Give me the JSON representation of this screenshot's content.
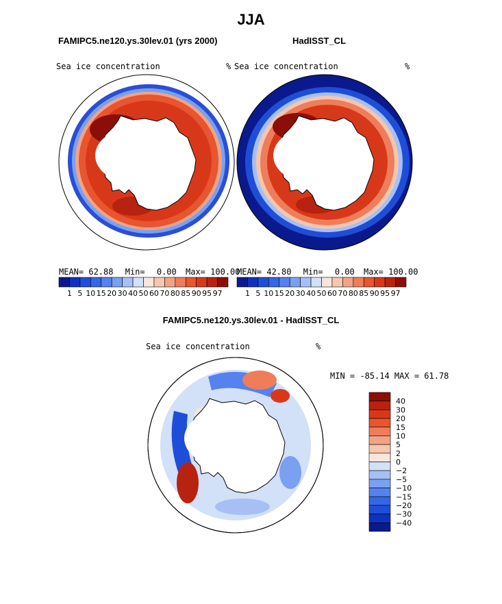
{
  "season": "JJA",
  "panels": {
    "left": {
      "title": "FAMIPC5.ne120.ys.30lev.01 (yrs 2000)",
      "variable": "Sea ice concentration",
      "units": "%",
      "stats": {
        "mean_label": "MEAN=",
        "mean": "62.88",
        "min_label": "Min=",
        "min": "0.00",
        "max_label": "Max=",
        "max": "100.00"
      }
    },
    "right": {
      "title": "HadISST_CL",
      "variable": "Sea ice concentration",
      "units": "%",
      "stats": {
        "mean_label": "MEAN=",
        "mean": "42.80",
        "min_label": "Min=",
        "min": "0.00",
        "max_label": "Max=",
        "max": "100.00"
      }
    },
    "diff": {
      "title": "FAMIPC5.ne120.ys.30lev.01 - HadISST_CL",
      "variable": "Sea ice concentration",
      "units": "%",
      "minmax": "MIN = -85.14 MAX =  61.78"
    }
  },
  "colorbar_horizontal": {
    "labels": [
      "1",
      "5",
      "10",
      "15",
      "20",
      "30",
      "40",
      "50",
      "60",
      "70",
      "80",
      "85",
      "90",
      "95",
      "97"
    ],
    "colors": [
      "#0a1a8c",
      "#1030c0",
      "#1e4ed8",
      "#3566e6",
      "#5582ee",
      "#7aa0f2",
      "#a6c0f5",
      "#d2e0f8",
      "#f7e6dc",
      "#f6c6ae",
      "#f3a385",
      "#ef7d5a",
      "#e8552e",
      "#d8381a",
      "#b82210",
      "#8c0e08"
    ]
  },
  "colorbar_vertical": {
    "labels": [
      "40",
      "30",
      "20",
      "15",
      "10",
      "5",
      "2",
      "0",
      "−2",
      "−5",
      "−10",
      "−15",
      "−20",
      "−30",
      "−40"
    ],
    "colors": [
      "#8c0e08",
      "#b82210",
      "#d8381a",
      "#e8552e",
      "#ef7d5a",
      "#f3a385",
      "#f6c6ae",
      "#f7e6dc",
      "#d2e0f8",
      "#a6c0f5",
      "#7aa0f2",
      "#5582ee",
      "#3566e6",
      "#1e4ed8",
      "#1030c0",
      "#0a1a8c"
    ]
  }
}
